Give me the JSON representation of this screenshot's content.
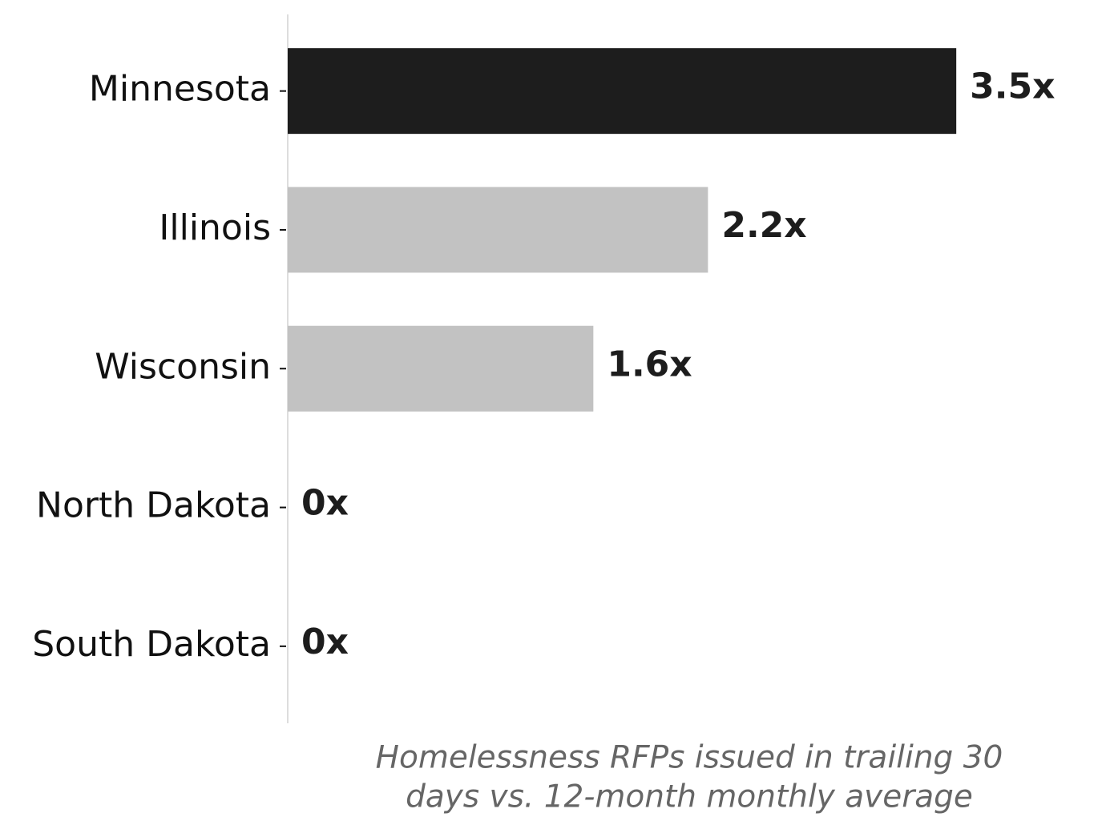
{
  "chart_data": {
    "type": "barh",
    "categories": [
      "Minnesota",
      "Illinois",
      "Wisconsin",
      "North Dakota",
      "South Dakota"
    ],
    "values": [
      3.5,
      2.2,
      1.6,
      0,
      0
    ],
    "value_labels": [
      "3.5x",
      "2.2x",
      "1.6x",
      "0x",
      "0x"
    ],
    "colors": [
      "#1d1d1d",
      "#c2c2c2",
      "#c2c2c2",
      "#c2c2c2",
      "#c2c2c2"
    ],
    "xlim": [
      0,
      4.2
    ],
    "x_label": [
      "Homelessness RFPs issued in trailing 30",
      "days vs. 12-month monthly average"
    ]
  }
}
